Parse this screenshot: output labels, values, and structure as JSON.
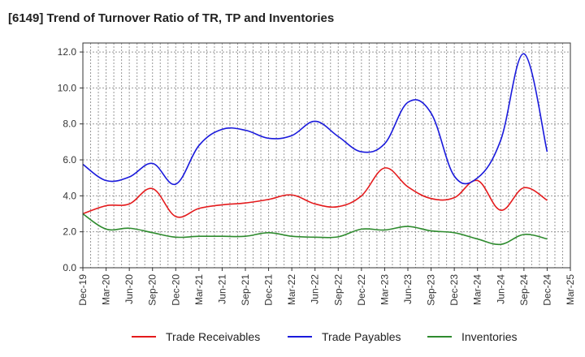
{
  "chart_data": {
    "type": "line",
    "title": "[6149]  Trend of Turnover Ratio of TR, TP and Inventories",
    "xlabel": "",
    "ylabel": "",
    "ylim": [
      0,
      12.5
    ],
    "yticks": [
      "0.0",
      "2.0",
      "4.0",
      "6.0",
      "8.0",
      "10.0",
      "12.0"
    ],
    "grid": true,
    "legend_position": "bottom",
    "x_tick_labels": [
      "Dec-19",
      "Mar-20",
      "Jun-20",
      "Sep-20",
      "Dec-20",
      "Mar-21",
      "Jun-21",
      "Sep-21",
      "Dec-21",
      "Mar-22",
      "Jun-22",
      "Sep-22",
      "Dec-22",
      "Mar-23",
      "Jun-23",
      "Sep-23",
      "Dec-23",
      "Mar-24",
      "Jun-24",
      "Sep-24",
      "Dec-24",
      "Mar-25"
    ],
    "x": [
      "Dec-19",
      "Mar-20",
      "Jun-20",
      "Sep-20",
      "Dec-20",
      "Mar-21",
      "Jun-21",
      "Sep-21",
      "Dec-21",
      "Mar-22",
      "Jun-22",
      "Sep-22",
      "Dec-22",
      "Mar-23",
      "Jun-23",
      "Sep-23",
      "Dec-23",
      "Mar-24",
      "Jun-24",
      "Sep-24",
      "Dec-24"
    ],
    "series": [
      {
        "name": "Trade Receivables",
        "color": "#e41a1c",
        "values": [
          3.0,
          3.45,
          3.55,
          4.4,
          2.85,
          3.3,
          3.5,
          3.6,
          3.8,
          4.05,
          3.55,
          3.4,
          4.0,
          5.55,
          4.5,
          3.85,
          3.9,
          4.85,
          3.2,
          4.45,
          3.75
        ]
      },
      {
        "name": "Trade Payables",
        "color": "#1a1adc",
        "values": [
          5.75,
          4.85,
          5.05,
          5.8,
          4.65,
          6.8,
          7.7,
          7.65,
          7.2,
          7.35,
          8.15,
          7.3,
          6.45,
          6.9,
          9.2,
          8.6,
          5.1,
          5.0,
          7.1,
          11.9,
          6.45
        ]
      },
      {
        "name": "Inventories",
        "color": "#2e8b2e",
        "values": [
          3.0,
          2.15,
          2.2,
          1.95,
          1.7,
          1.75,
          1.75,
          1.75,
          1.95,
          1.75,
          1.7,
          1.72,
          2.15,
          2.1,
          2.3,
          2.05,
          1.95,
          1.6,
          1.3,
          1.85,
          1.6
        ]
      }
    ]
  }
}
